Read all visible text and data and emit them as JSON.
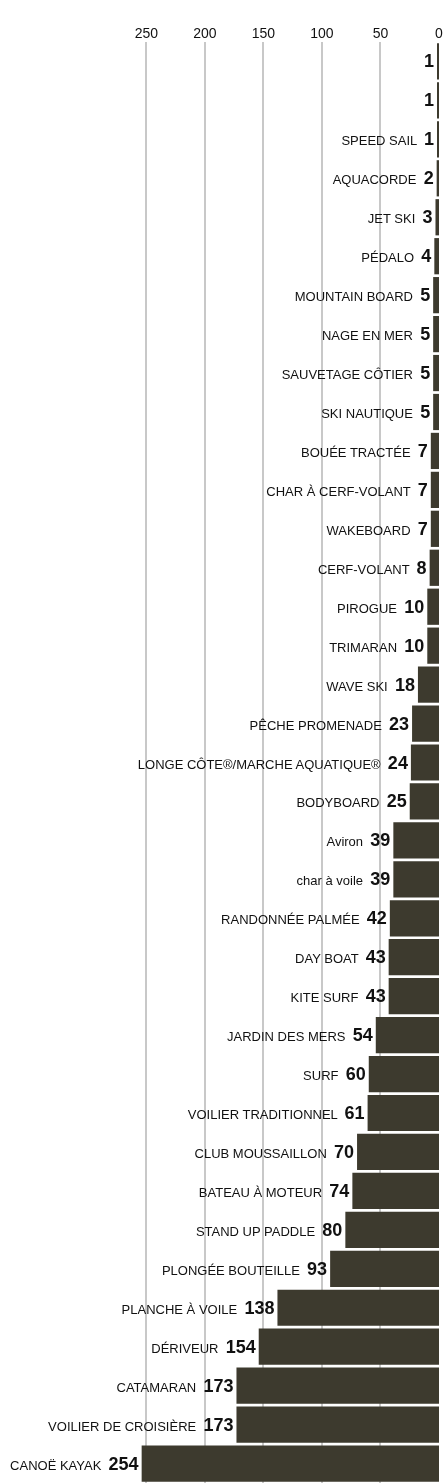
{
  "chart_data": {
    "type": "bar",
    "orientation": "horizontal",
    "categories": [
      null,
      null,
      "SPEED SAIL",
      "AQUACORDE",
      "JET SKI",
      "PÉDALO",
      "MOUNTAIN BOARD",
      "NAGE EN MER",
      "SAUVETAGE CÔTIER",
      "SKI NAUTIQUE",
      "BOUÉE TRACTÉE",
      "CHAR À CERF-VOLANT",
      "WAKEBOARD",
      "CERF-VOLANT",
      "PIROGUE",
      "TRIMARAN",
      "WAVE SKI",
      "PÊCHE PROMENADE",
      "LONGE CÔTE®/MARCHE AQUATIQUE®",
      "BODYBOARD",
      "Aviron",
      "char à voile",
      "RANDONNÉE PALMÉE",
      "DAY BOAT",
      "KITE SURF",
      "JARDIN DES MERS",
      "SURF",
      "VOILIER TRADITIONNEL",
      "CLUB MOUSSAILLON",
      "BATEAU À MOTEUR",
      "STAND UP PADDLE",
      "PLONGÉE BOUTEILLE",
      "PLANCHE À VOILE",
      "DÉRIVEUR",
      "CATAMARAN",
      "VOILIER DE CROISIÈRE",
      "CANOË KAYAK"
    ],
    "values": [
      1,
      1,
      1,
      2,
      3,
      4,
      5,
      5,
      5,
      5,
      7,
      7,
      7,
      8,
      10,
      10,
      18,
      23,
      24,
      25,
      39,
      39,
      42,
      43,
      43,
      54,
      60,
      61,
      70,
      74,
      80,
      93,
      138,
      154,
      173,
      173,
      254
    ],
    "color": "#3d3a2e",
    "xlim": [
      375,
      0
    ],
    "xticks": [
      250,
      200,
      150,
      100,
      50,
      0
    ],
    "grid": "x",
    "data_labels": true,
    "tick_labels": "x"
  }
}
